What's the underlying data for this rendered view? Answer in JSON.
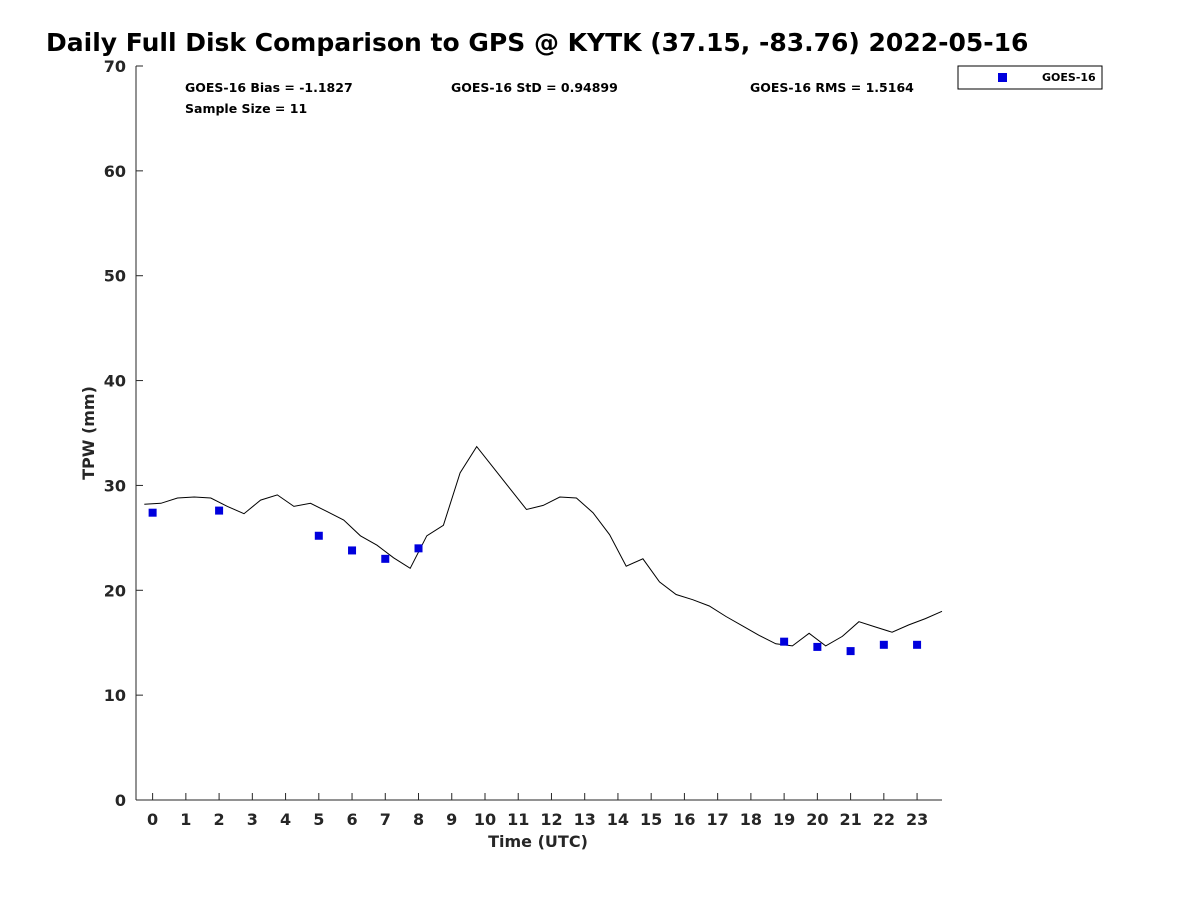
{
  "chart_data": {
    "type": "scatter",
    "title": "Daily Full Disk Comparison to GPS @ KYTK (37.15, -83.76) 2022-05-16",
    "xlabel": "Time (UTC)",
    "ylabel": "TPW (mm)",
    "xlim": [
      -0.5,
      23.75
    ],
    "ylim": [
      0,
      70
    ],
    "xticks": [
      0,
      1,
      2,
      3,
      4,
      5,
      6,
      7,
      8,
      9,
      10,
      11,
      12,
      13,
      14,
      15,
      16,
      17,
      18,
      19,
      20,
      21,
      22,
      23
    ],
    "yticks": [
      0,
      10,
      20,
      30,
      40,
      50,
      60,
      70
    ],
    "grid": false,
    "legend_position": "top-right",
    "annotations": {
      "bias": "GOES-16 Bias = -1.1827",
      "std": "GOES-16 StD = 0.94899",
      "rms": "GOES-16 RMS = 1.5164",
      "sample": "Sample Size = 11"
    },
    "series": [
      {
        "name": "GOES-16",
        "kind": "scatter",
        "marker": "square",
        "color": "#0000dd",
        "x": [
          0,
          2,
          5,
          6,
          7,
          8,
          19,
          20,
          21,
          22,
          23
        ],
        "y": [
          27.4,
          27.6,
          25.2,
          23.8,
          23.0,
          24.0,
          15.1,
          14.6,
          14.2,
          14.8,
          14.8
        ]
      },
      {
        "kind": "line",
        "color": "#000000",
        "x": [
          -0.25,
          0.25,
          0.75,
          1.25,
          1.75,
          2.25,
          2.75,
          3.25,
          3.75,
          4.25,
          4.75,
          5.25,
          5.75,
          6.25,
          6.75,
          7.25,
          7.75,
          8.25,
          8.75,
          9.25,
          9.75,
          10.25,
          10.75,
          11.25,
          11.75,
          12.25,
          12.75,
          13.25,
          13.75,
          14.25,
          14.75,
          15.25,
          15.75,
          16.25,
          16.75,
          17.25,
          17.75,
          18.25,
          18.75,
          19.25,
          19.75,
          20.25,
          20.75,
          21.25,
          21.75,
          22.25,
          22.75,
          23.25,
          23.75
        ],
        "y": [
          28.2,
          28.3,
          28.8,
          28.9,
          28.8,
          28.0,
          27.3,
          28.6,
          29.1,
          28.0,
          28.3,
          27.5,
          26.7,
          25.2,
          24.3,
          23.1,
          22.1,
          25.2,
          26.2,
          31.2,
          33.7,
          31.7,
          29.7,
          27.7,
          28.1,
          28.9,
          28.8,
          27.4,
          25.3,
          22.3,
          23.0,
          20.8,
          19.6,
          19.1,
          18.5,
          17.5,
          16.6,
          15.7,
          14.9,
          14.7,
          15.9,
          14.7,
          15.6,
          17.0,
          16.5,
          16.0,
          16.7,
          17.3,
          18.0
        ]
      }
    ]
  }
}
